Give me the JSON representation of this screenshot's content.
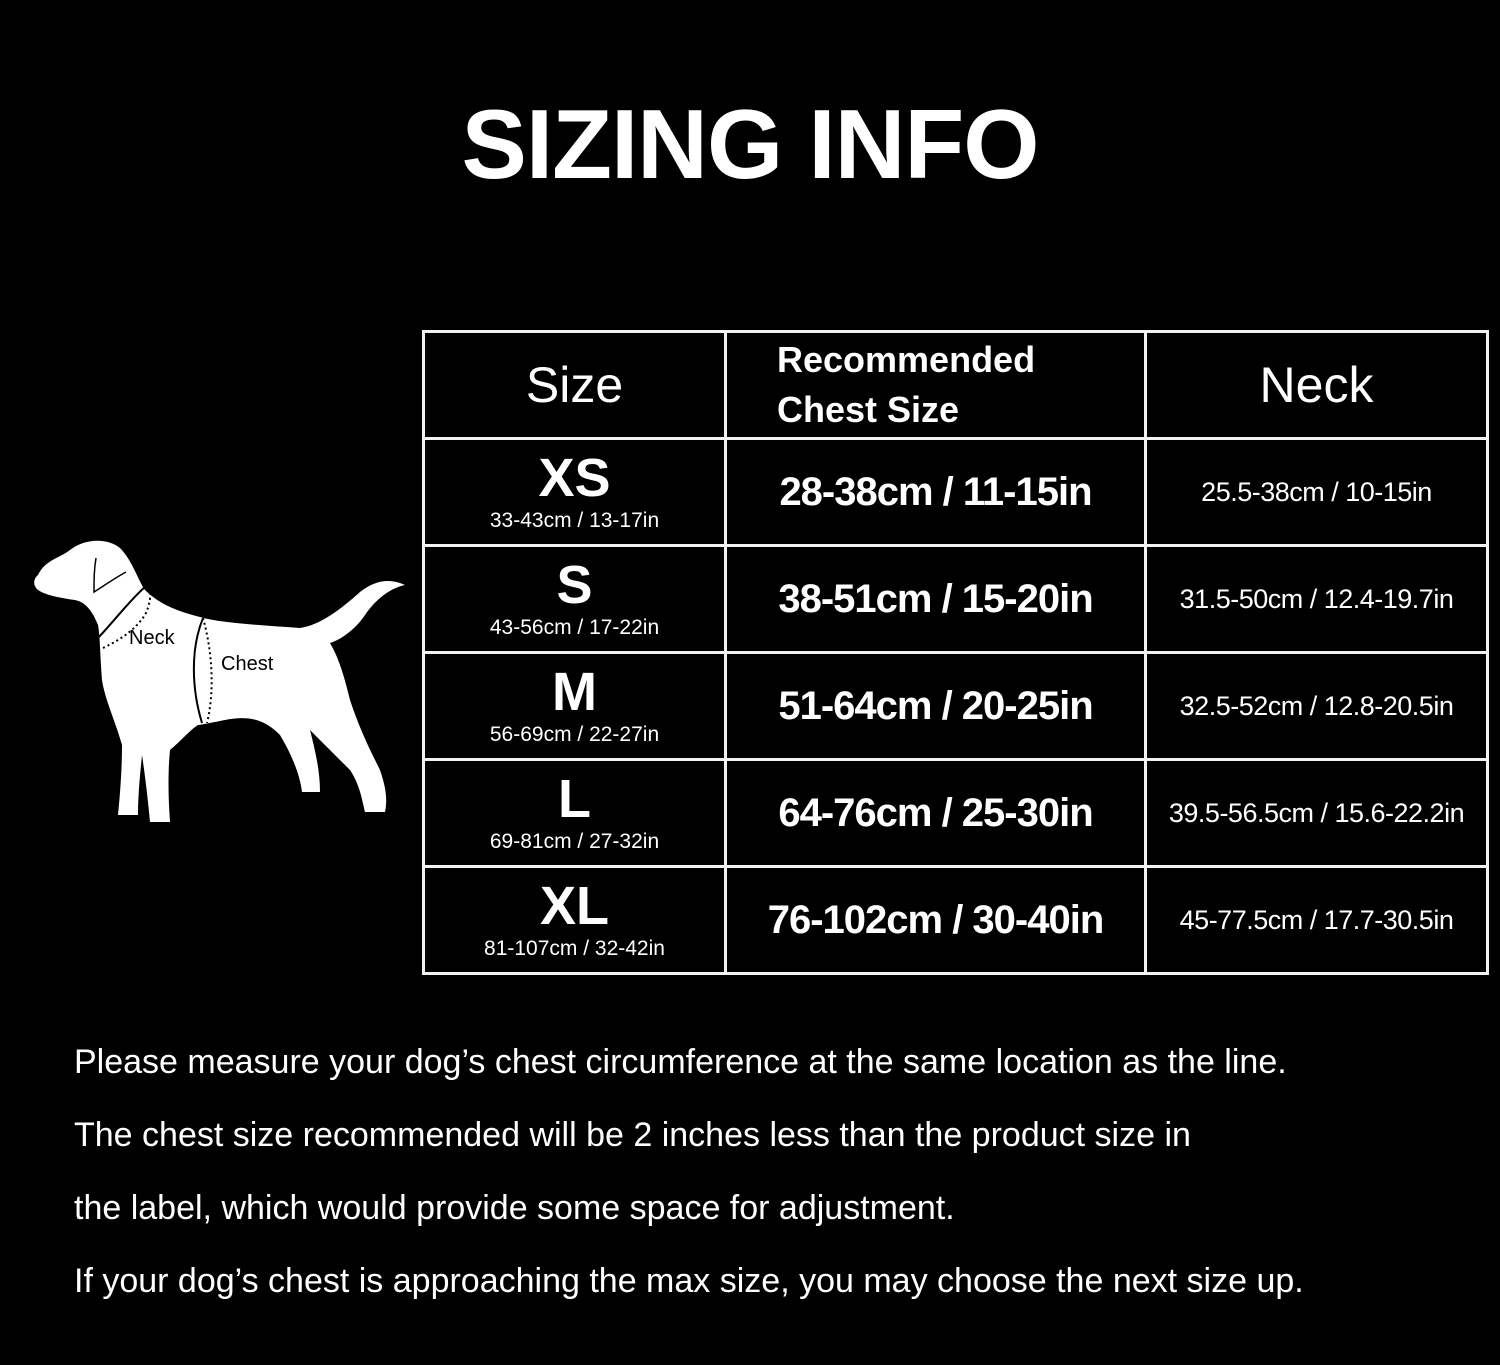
{
  "title": "SIZING INFO",
  "diagram": {
    "neck_label": "Neck",
    "chest_label": "Chest"
  },
  "table": {
    "headers": {
      "size": "Size",
      "chest_line1": "Recommended",
      "chest_line2": "Chest Size",
      "neck": "Neck"
    },
    "rows": [
      {
        "size": "XS",
        "product_size": "33-43cm / 13-17in",
        "chest": "28-38cm / 11-15in",
        "neck": "25.5-38cm / 10-15in"
      },
      {
        "size": "S",
        "product_size": "43-56cm / 17-22in",
        "chest": "38-51cm / 15-20in",
        "neck": "31.5-50cm / 12.4-19.7in"
      },
      {
        "size": "M",
        "product_size": "56-69cm / 22-27in",
        "chest": "51-64cm / 20-25in",
        "neck": "32.5-52cm / 12.8-20.5in"
      },
      {
        "size": "L",
        "product_size": "69-81cm / 27-32in",
        "chest": "64-76cm / 25-30in",
        "neck": "39.5-56.5cm / 15.6-22.2in"
      },
      {
        "size": "XL",
        "product_size": "81-107cm / 32-42in",
        "chest": "76-102cm / 30-40in",
        "neck": "45-77.5cm / 17.7-30.5in"
      }
    ]
  },
  "notes": [
    "Please measure your dog’s chest circumference at the same location as the line.",
    "The chest size recommended will be 2 inches less than the product size in",
    "the label, which would provide some space for adjustment.",
    "If your dog’s chest is approaching the max size, you may choose the next size up."
  ]
}
